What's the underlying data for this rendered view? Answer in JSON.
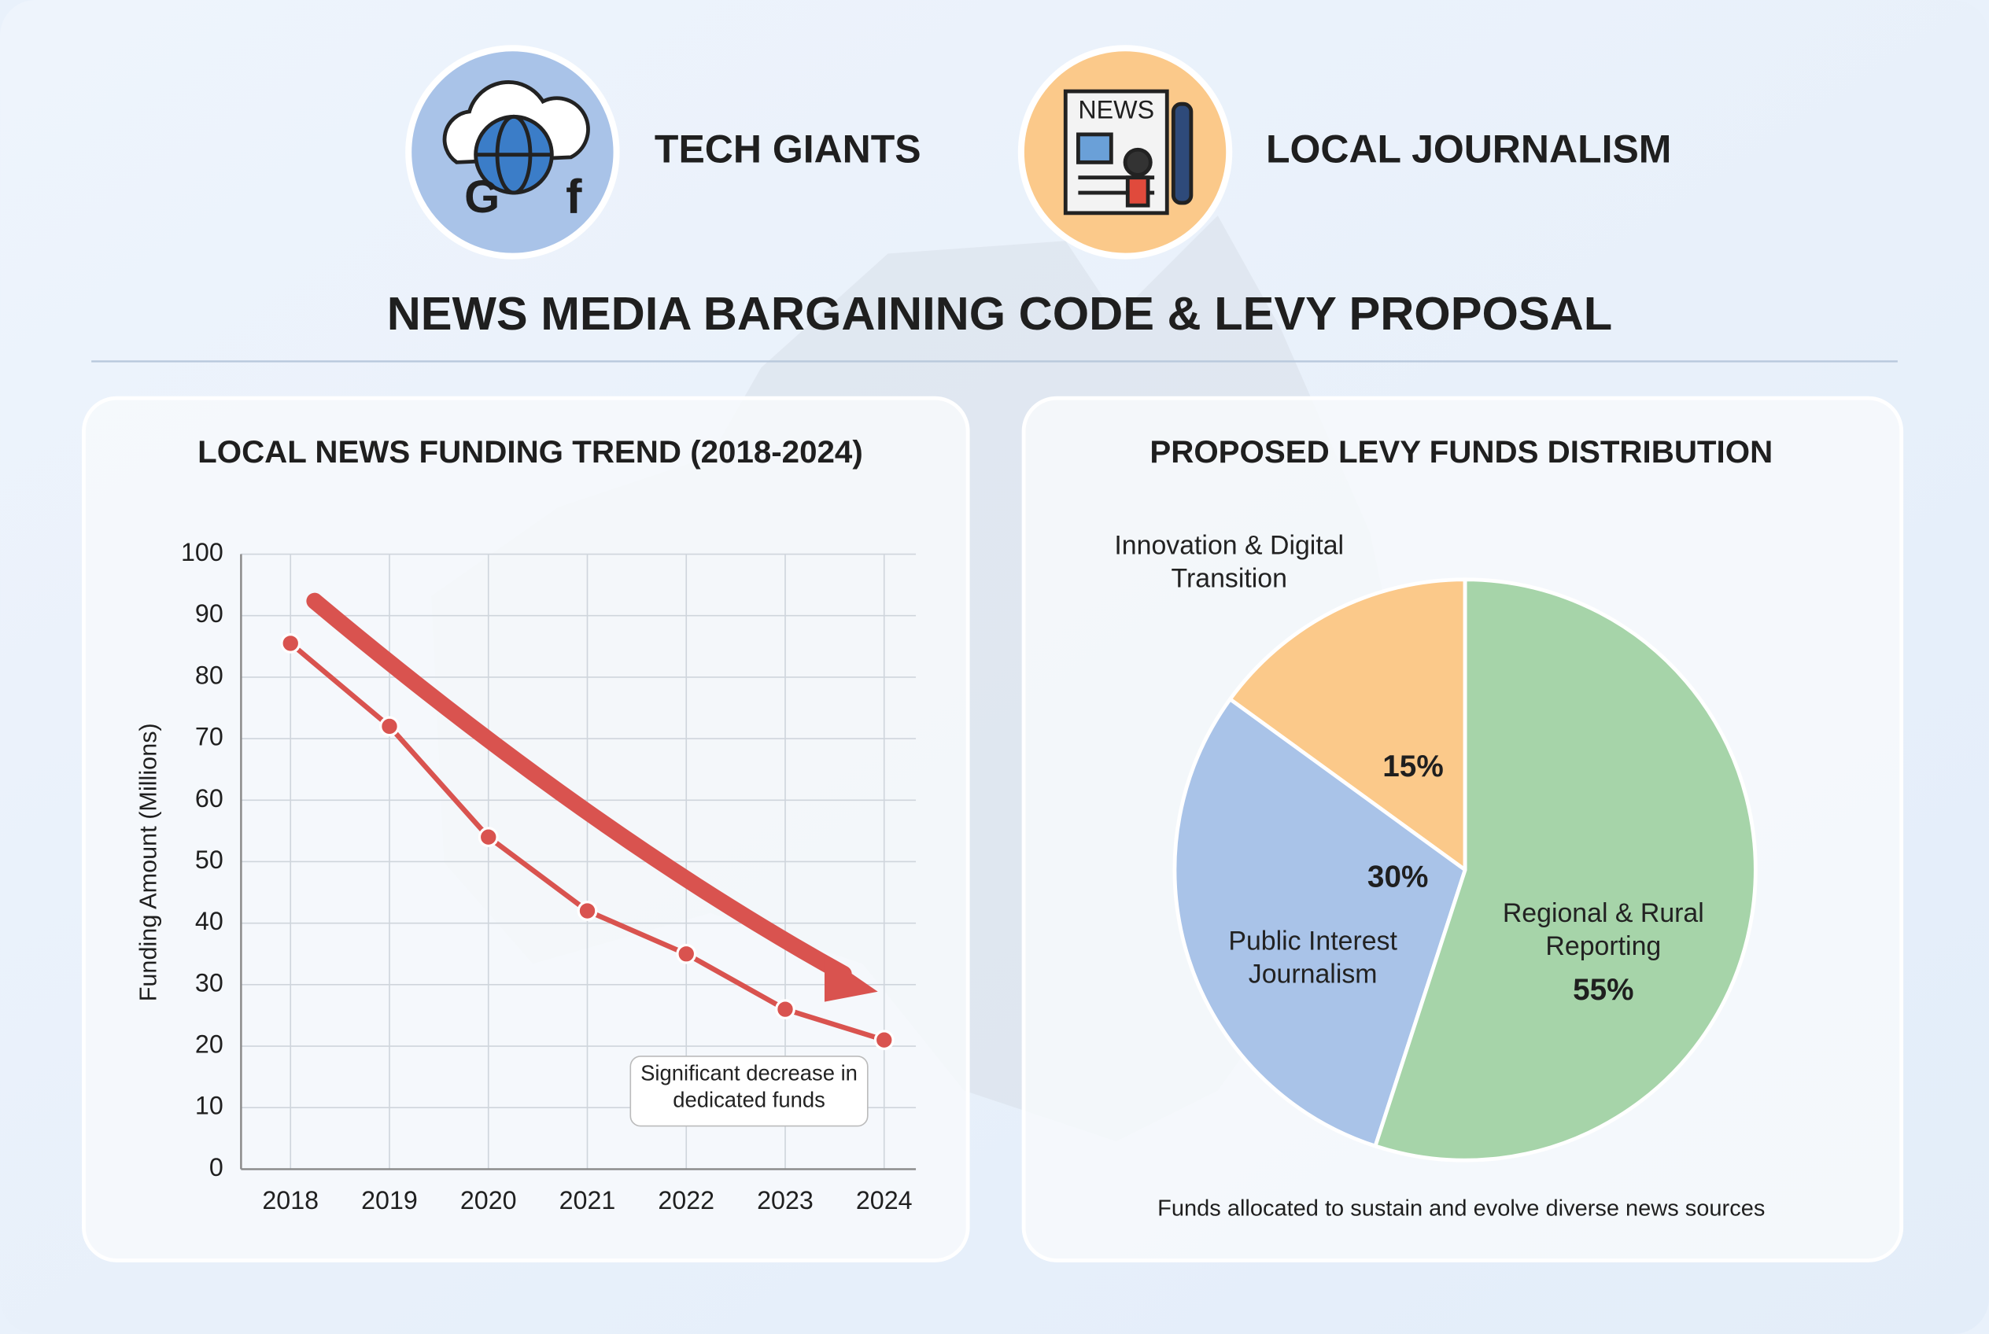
{
  "header": {
    "left_label": "TECH GIANTS",
    "right_label": "LOCAL JOURNALISM",
    "title": "NEWS MEDIA BARGAINING CODE & LEVY PROPOSAL"
  },
  "chart_data": [
    {
      "type": "line",
      "title": "LOCAL NEWS FUNDING TREND (2018-2024)",
      "y_label": "Funding Amount (Millions)",
      "categories": [
        "2018",
        "2019",
        "2020",
        "2021",
        "2022",
        "2023",
        "2024"
      ],
      "values": [
        85.5,
        72,
        54,
        42,
        35,
        26,
        21
      ],
      "color": "#d9534f",
      "ylim": [
        0,
        100
      ],
      "yticks": [
        0,
        10,
        20,
        30,
        40,
        50,
        60,
        70,
        80,
        90,
        100
      ],
      "grid": true,
      "annotation": "Significant decrease in dedicated funds"
    },
    {
      "type": "pie",
      "title": "PROPOSED LEVY FUNDS DISTRIBUTION",
      "categories": [
        "Innovation & Digital Transition",
        "Public Interest Journalism",
        "Regional & Rural Reporting"
      ],
      "values": [
        15,
        30,
        55
      ],
      "value_labels": [
        "15%",
        "30%",
        "55%"
      ],
      "colors": [
        "#fbc98a",
        "#a9c3e8",
        "#a6d4a9"
      ],
      "caption": "Funds allocated to sustain and evolve diverse news sources"
    }
  ]
}
